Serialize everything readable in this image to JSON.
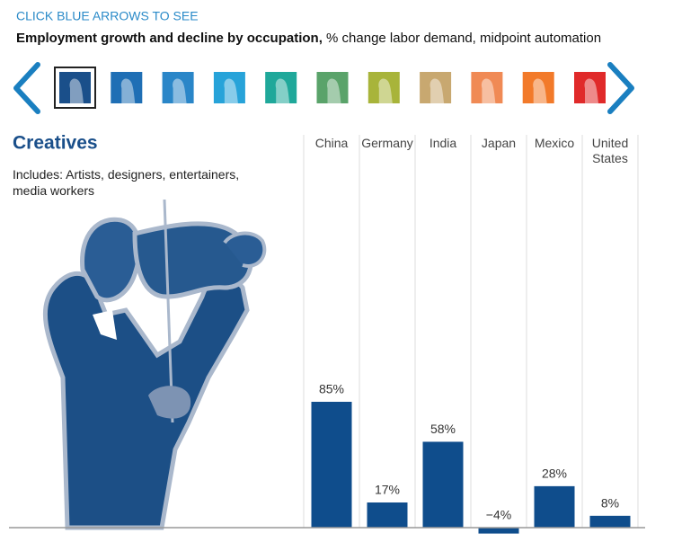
{
  "header": {
    "instruction": "CLICK BLUE ARROWS TO SEE",
    "title": "Employment growth and decline by occupation,",
    "subtitle": "% change labor demand, midpoint automation"
  },
  "chart_data": {
    "type": "bar",
    "title": "Creatives",
    "description": "Includes: Artists, designers, entertainers, media workers",
    "categories": [
      "China",
      "Germany",
      "India",
      "Japan",
      "Mexico",
      "United States"
    ],
    "values": [
      85,
      17,
      58,
      -4,
      28,
      8
    ],
    "value_labels": [
      "85%",
      "17%",
      "58%",
      "−4%",
      "28%",
      "8%"
    ],
    "color": "#0f4d8c"
  }
}
